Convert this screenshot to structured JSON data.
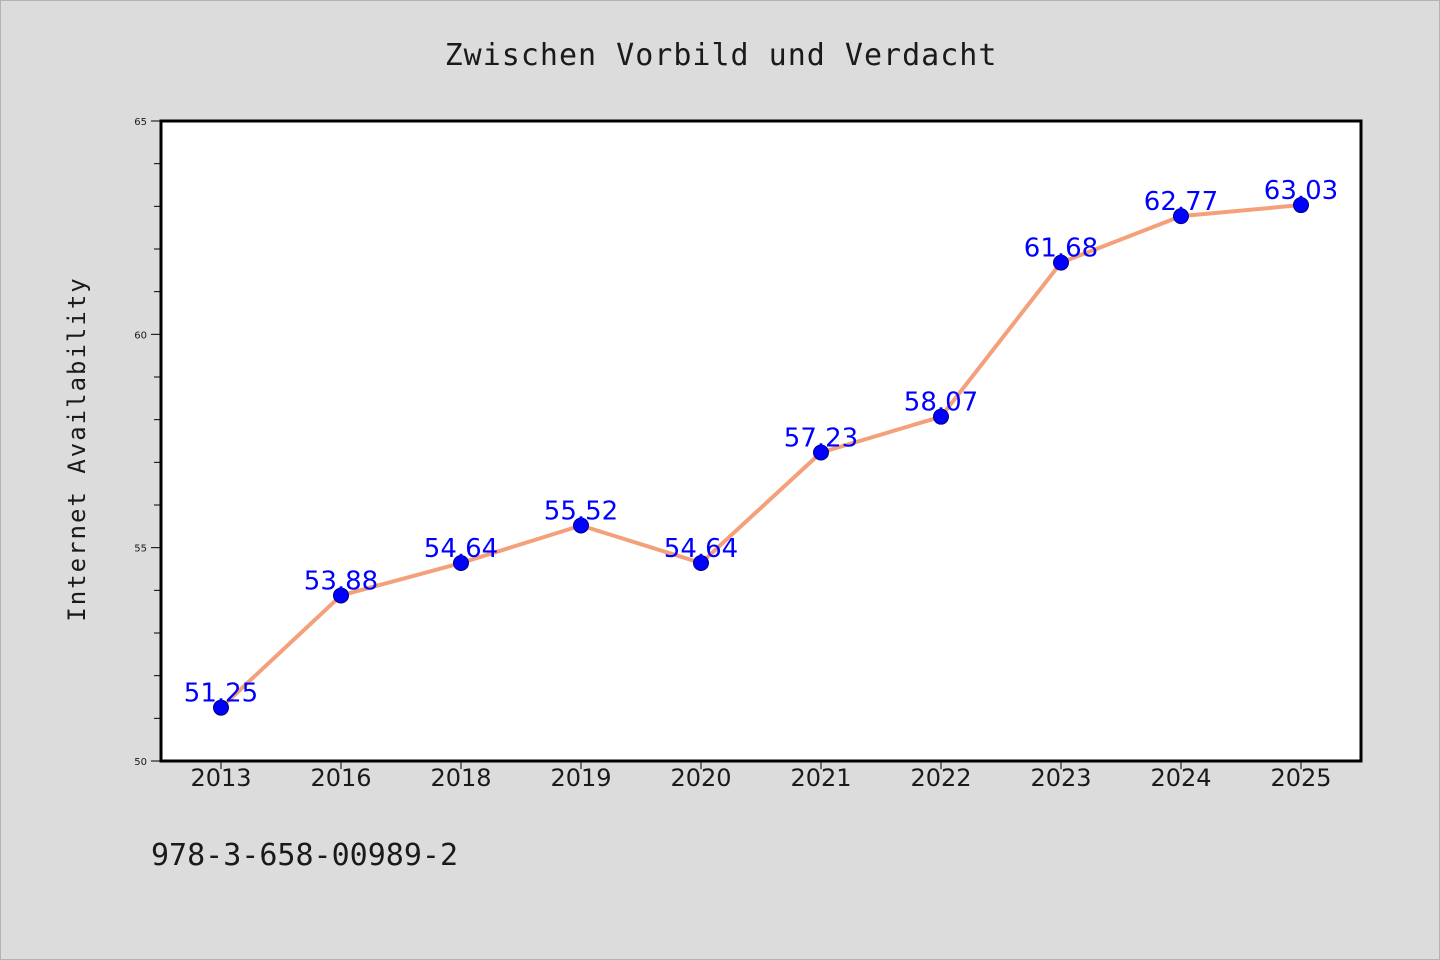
{
  "chart_data": {
    "type": "line",
    "title": "Zwischen Vorbild und Verdacht",
    "xlabel": "",
    "ylabel": "Internet Availability",
    "categories": [
      "2013",
      "2016",
      "2018",
      "2019",
      "2020",
      "2021",
      "2022",
      "2023",
      "2024",
      "2025"
    ],
    "series": [
      {
        "values": [
          51.25,
          53.88,
          54.64,
          55.52,
          54.64,
          57.23,
          58.07,
          61.68,
          62.77,
          63.03
        ],
        "data_labels": [
          "51.25",
          "53.88",
          "54.64",
          "55.52",
          "54.64",
          "57.23",
          "58.07",
          "61.68",
          "62.77",
          "63.03"
        ]
      }
    ],
    "ylim": [
      50,
      65
    ],
    "y_tick_labels": [
      "50",
      "55",
      "60",
      "65"
    ],
    "grid": false,
    "legend": "none",
    "colors": {
      "line": "#f4a07a",
      "marker": "#0000ff",
      "marker_edge": "#000080",
      "label": "#0000ff",
      "plot_background": "#ffffff",
      "figure_background": "#dcdcdc"
    }
  },
  "footer": {
    "isbn": "978-3-658-00989-2"
  }
}
